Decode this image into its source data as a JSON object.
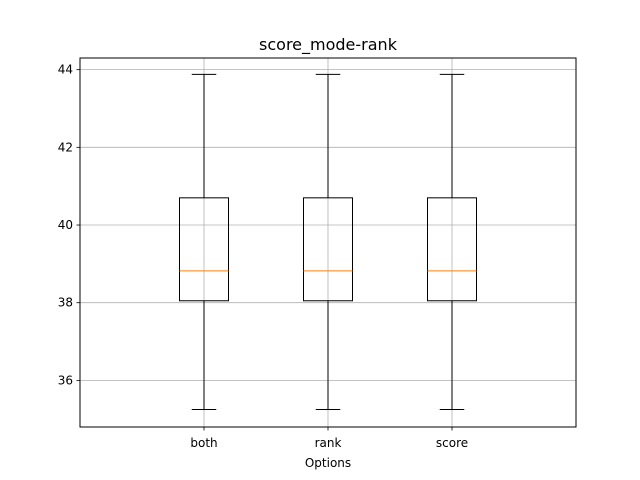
{
  "chart_data": {
    "type": "box",
    "title": "score_mode-rank",
    "xlabel": "Options",
    "ylabel": "",
    "categories": [
      "both",
      "rank",
      "score"
    ],
    "boxes": [
      {
        "name": "both",
        "whisker_low": 35.25,
        "q1": 38.05,
        "median": 38.82,
        "q3": 40.7,
        "whisker_high": 43.88
      },
      {
        "name": "rank",
        "whisker_low": 35.25,
        "q1": 38.05,
        "median": 38.82,
        "q3": 40.7,
        "whisker_high": 43.88
      },
      {
        "name": "score",
        "whisker_low": 35.25,
        "q1": 38.05,
        "median": 38.82,
        "q3": 40.7,
        "whisker_high": 43.88
      }
    ],
    "ylim": [
      34.8,
      44.3
    ],
    "yticks": [
      36,
      38,
      40,
      42,
      44
    ],
    "ytick_labels": [
      "36",
      "38",
      "40",
      "42",
      "44"
    ],
    "grid": true,
    "colors": {
      "box": "#000000",
      "median": "#ff7f0e",
      "grid": "#b0b0b0",
      "background": "#ffffff"
    }
  }
}
